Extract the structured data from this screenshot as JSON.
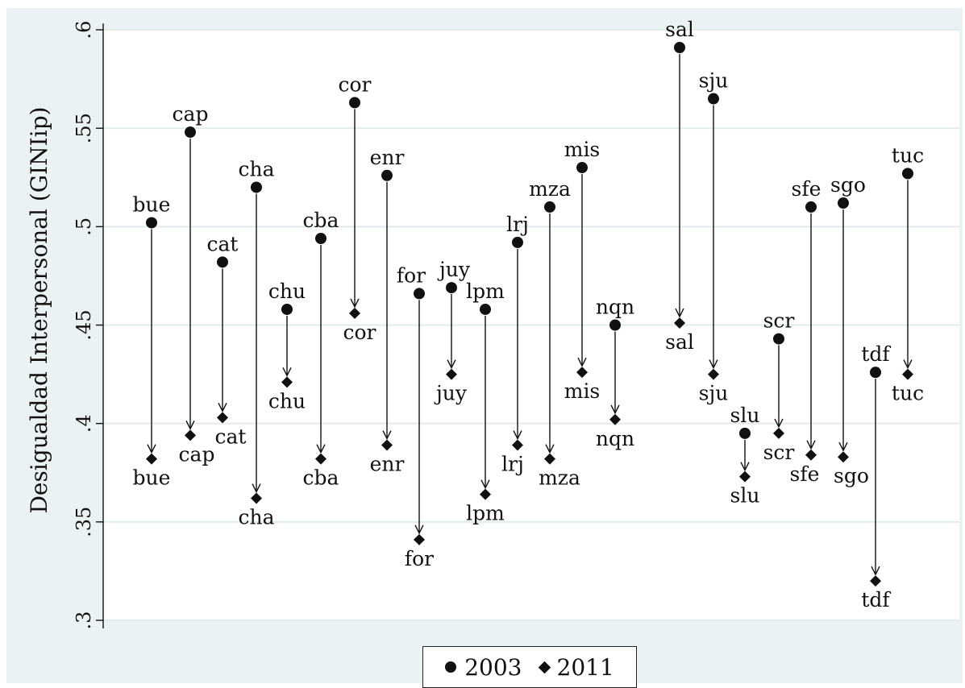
{
  "chart_data": {
    "type": "scatter",
    "title": "",
    "xlabel": "",
    "ylabel": "Desigualdad Interpersonal (GINIip)",
    "ylim": [
      0.3,
      0.6
    ],
    "yticks": [
      0.3,
      0.35,
      0.4,
      0.45,
      0.5,
      0.55,
      0.6
    ],
    "ytick_labels": [
      ".3",
      ".35",
      ".4",
      ".45",
      ".5",
      ".55",
      ".6"
    ],
    "grid": true,
    "legend_position": "bottom",
    "categories": [
      "bue",
      "cap",
      "cat",
      "cha",
      "chu",
      "cba",
      "cor",
      "enr",
      "for",
      "juy",
      "lpm",
      "lrj",
      "mza",
      "mis",
      "nqn",
      "sal",
      "sju",
      "slu",
      "scr",
      "sfe",
      "sgo",
      "tdf",
      "tuc"
    ],
    "series": [
      {
        "name": "2003",
        "marker": "circle",
        "values": [
          0.502,
          0.548,
          0.482,
          0.52,
          0.458,
          0.494,
          0.563,
          0.526,
          0.466,
          0.469,
          0.458,
          0.492,
          0.51,
          0.53,
          0.45,
          0.591,
          0.565,
          0.395,
          0.443,
          0.51,
          0.512,
          0.426,
          0.527
        ]
      },
      {
        "name": "2011",
        "marker": "diamond",
        "values": [
          0.382,
          0.394,
          0.403,
          0.362,
          0.421,
          0.382,
          0.456,
          0.389,
          0.341,
          0.425,
          0.364,
          0.389,
          0.382,
          0.426,
          0.402,
          0.451,
          0.425,
          0.373,
          0.395,
          0.384,
          0.383,
          0.32,
          0.425
        ]
      }
    ],
    "arrows": "from 2003 value to 2011 value for each province"
  }
}
